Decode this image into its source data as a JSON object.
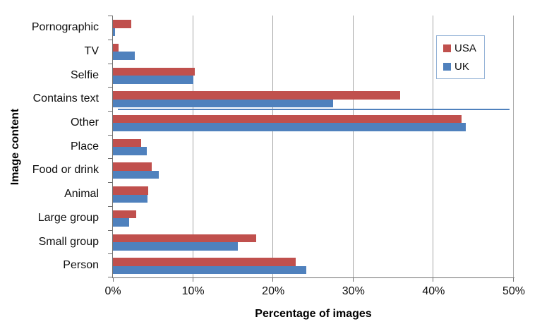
{
  "chart_data": {
    "type": "bar",
    "orientation": "horizontal",
    "title": "",
    "xlabel": "Percentage of images",
    "ylabel": "Image content",
    "xlim": [
      0,
      50
    ],
    "grid": true,
    "legend_position": "top-right",
    "x_ticks": [
      {
        "value": 0,
        "label": "0%"
      },
      {
        "value": 10,
        "label": "10%"
      },
      {
        "value": 20,
        "label": "20%"
      },
      {
        "value": 30,
        "label": "30%"
      },
      {
        "value": 40,
        "label": "40%"
      },
      {
        "value": 50,
        "label": "50%"
      }
    ],
    "categories": [
      "Pornographic",
      "TV",
      "Selfie",
      "Contains text",
      "Other",
      "Place",
      "Food or drink",
      "Animal",
      "Large group",
      "Small group",
      "Person"
    ],
    "series": [
      {
        "name": "USA",
        "color": "#C0504D",
        "values": [
          2.3,
          0.7,
          10.2,
          35.8,
          43.5,
          3.5,
          4.8,
          4.4,
          2.9,
          17.9,
          22.8
        ]
      },
      {
        "name": "UK",
        "color": "#4F81BD",
        "values": [
          0.3,
          2.7,
          10.0,
          27.5,
          44.0,
          4.2,
          5.7,
          4.3,
          2.0,
          15.6,
          24.1
        ]
      }
    ],
    "annotations": [
      {
        "type": "thin-line",
        "after_category": "Contains text",
        "x_start": 0.6,
        "x_end": 49.5,
        "color": "#4F81BD"
      }
    ]
  },
  "colors": {
    "gridline": "#A6A6A6",
    "axis": "#707070",
    "legend_border": "#95B3D7",
    "background": "#FFFFFF"
  }
}
